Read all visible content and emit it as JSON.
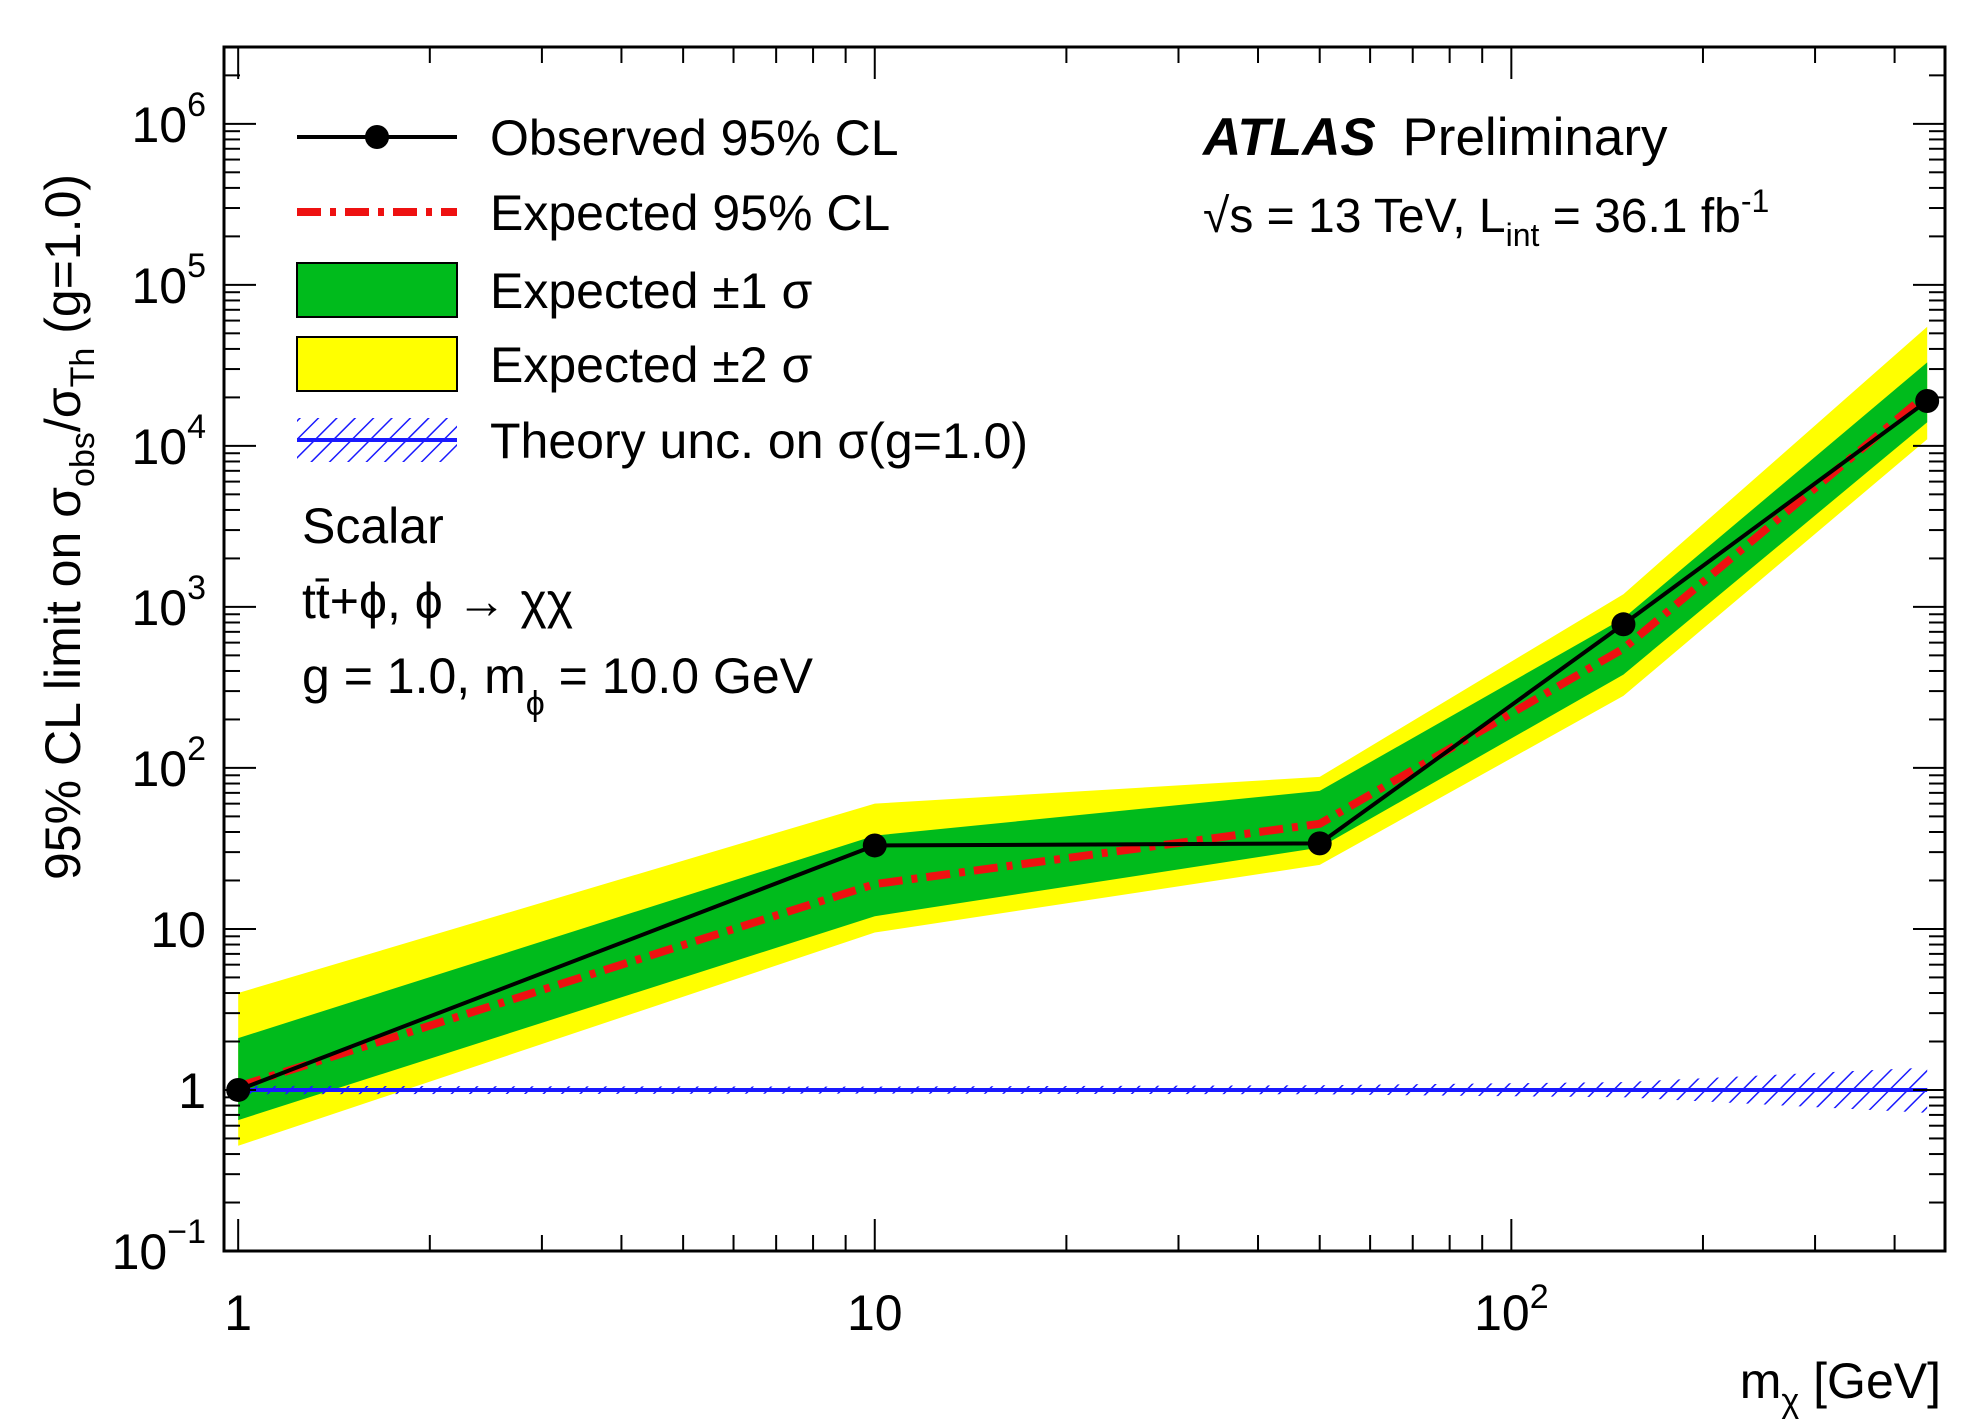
{
  "chart_data": {
    "type": "line",
    "title": "",
    "experiment": "ATLAS",
    "status": "Preliminary",
    "energy_lumi": {
      "sqrt": "√",
      "s_part": "s = 13 TeV, L",
      "int_sub": "int",
      "lumi_part": " = 36.1 fb",
      "minus_one": "-1"
    },
    "xlabel": {
      "main": "m",
      "sub": "χ",
      "unit": " [GeV]"
    },
    "ylabel": {
      "pre": "95% CL limit on σ",
      "sub1": "obs",
      "mid": "/σ",
      "sub2": "Th",
      "post": " (g=1.0)"
    },
    "x_scale": "log",
    "y_scale": "log",
    "xlim": [
      0.95,
      480
    ],
    "ylim": [
      0.1,
      3000000
    ],
    "x_ticks": [
      {
        "value": 1,
        "base": "1",
        "exp": ""
      },
      {
        "value": 10,
        "base": "10",
        "exp": ""
      },
      {
        "value": 100,
        "base": "10",
        "exp": "2"
      }
    ],
    "y_ticks": [
      {
        "value": 0.1,
        "base": "10",
        "exp": "−1"
      },
      {
        "value": 1,
        "base": "1",
        "exp": ""
      },
      {
        "value": 10,
        "base": "10",
        "exp": ""
      },
      {
        "value": 100,
        "base": "10",
        "exp": "2"
      },
      {
        "value": 1000,
        "base": "10",
        "exp": "3"
      },
      {
        "value": 10000,
        "base": "10",
        "exp": "4"
      },
      {
        "value": 100000,
        "base": "10",
        "exp": "5"
      },
      {
        "value": 1000000,
        "base": "10",
        "exp": "6"
      }
    ],
    "mass_points": [
      1,
      10,
      50,
      150,
      450
    ],
    "observed": [
      1.0,
      33,
      34,
      780,
      19000
    ],
    "expected": [
      1.05,
      19,
      45,
      550,
      21000
    ],
    "band_1sigma": {
      "low": [
        0.65,
        12,
        32,
        380,
        14000
      ],
      "high": [
        2.1,
        38,
        72,
        850,
        33000
      ]
    },
    "band_2sigma": {
      "low": [
        0.45,
        9.5,
        25,
        280,
        11000
      ],
      "high": [
        4.0,
        60,
        88,
        1200,
        55000
      ]
    },
    "theory": {
      "value": 1.0,
      "unc_low": [
        0.94,
        0.95,
        0.94,
        0.9,
        0.72
      ],
      "unc_high": [
        1.06,
        1.05,
        1.07,
        1.12,
        1.38
      ]
    },
    "legend": {
      "position": "top-left",
      "entries": [
        {
          "label": "Observed 95% CL",
          "style": "line-marker",
          "color": "#000000"
        },
        {
          "label": "Expected 95% CL",
          "style": "dash-dot",
          "color": "#ee1111"
        },
        {
          "label": "Expected ±1 σ",
          "style": "box",
          "color": "#00bb1c"
        },
        {
          "label": "Expected ±2 σ",
          "style": "box",
          "color": "#ffff00"
        },
        {
          "label": "Theory unc. on σ(g=1.0)",
          "style": "hatched-line",
          "color": "#1a1aff"
        }
      ]
    },
    "annotations": {
      "model": "Scalar",
      "process": "tt̄+ϕ, ϕ → χχ",
      "coupling_line": {
        "pre": "g = 1.0,  m",
        "sub": "ϕ",
        "post": " = 10.0 GeV"
      }
    }
  }
}
